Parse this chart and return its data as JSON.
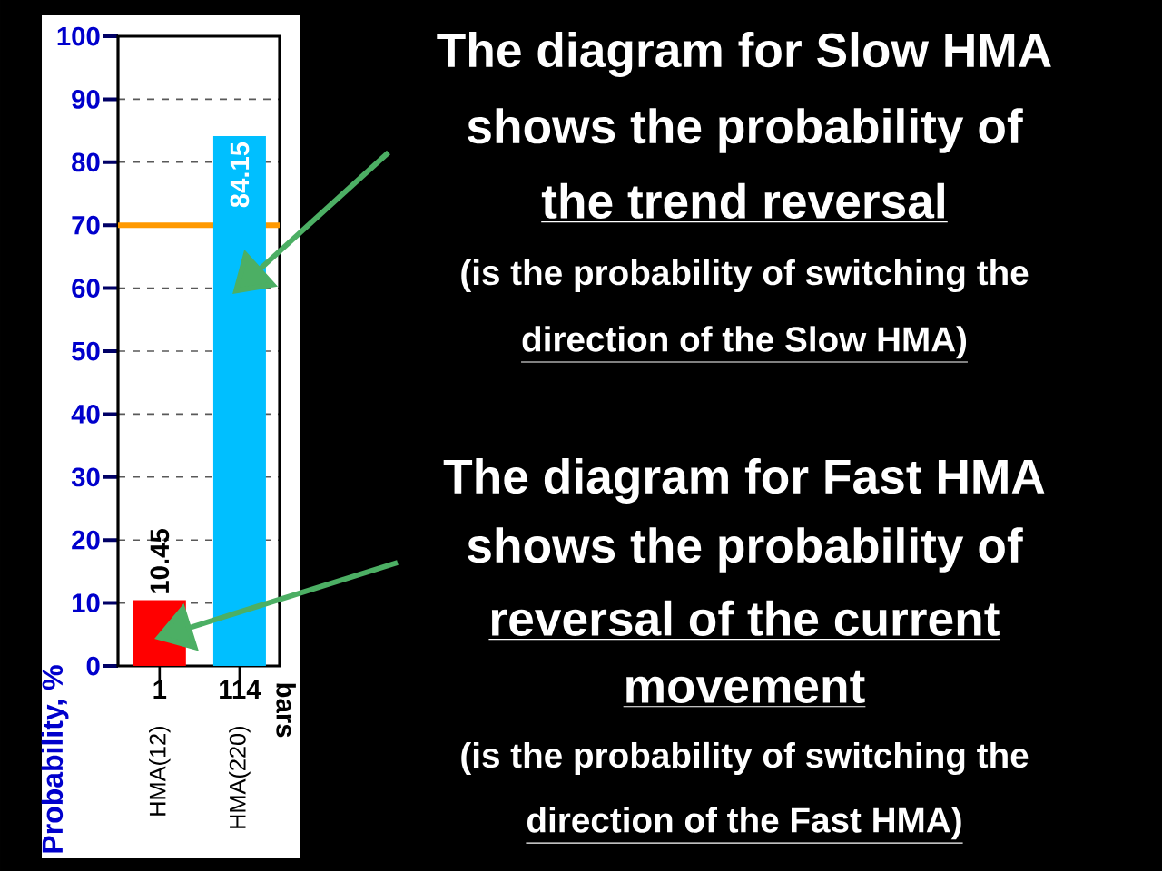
{
  "chart_data": {
    "type": "bar",
    "ylabel": "Probability, %",
    "categories": [
      "HMA(12)",
      "HMA(220)"
    ],
    "values": [
      10.45,
      84.15
    ],
    "colors": [
      "#ff0000",
      "#00bfff"
    ],
    "ylim": [
      0,
      100
    ],
    "yticks": [
      0,
      10,
      20,
      30,
      40,
      50,
      60,
      70,
      80,
      90,
      100
    ],
    "grid": "y",
    "data_labels": true,
    "ref_lines": [
      {
        "axis": "y",
        "value": 70,
        "color": "#ff9900"
      }
    ],
    "annotations": [
      "1",
      "114",
      "bars",
      "The diagram for Slow HMA",
      "shows the probability of",
      "the trend reversal",
      "(is the probability of switching the",
      "direction of the Slow HMA)",
      "The diagram for Fast HMA",
      "shows the probability of",
      "reversal of the current",
      "movement",
      "(is the probability of switching the",
      "direction of the Fast HMA)"
    ]
  }
}
